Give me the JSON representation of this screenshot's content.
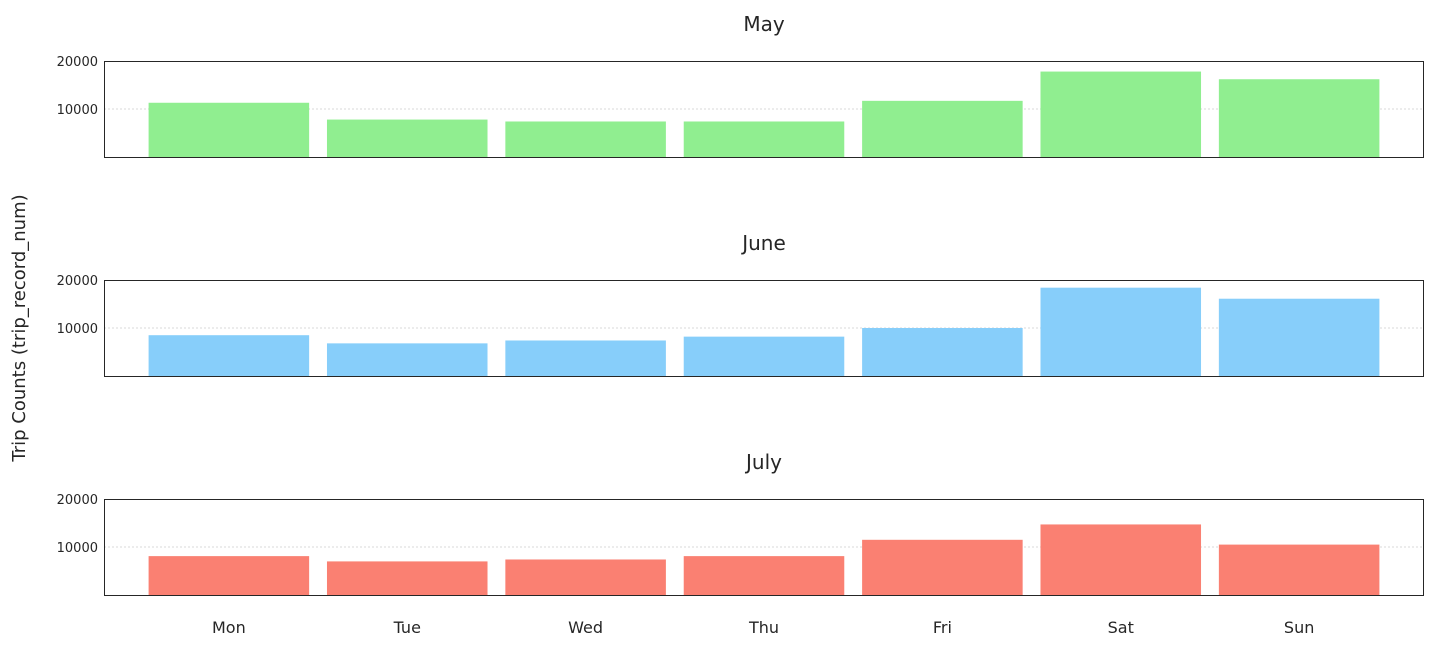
{
  "chart_data": {
    "type": "bar",
    "ylabel": "Trip Counts (trip_record_num)",
    "categories": [
      "Mon",
      "Tue",
      "Wed",
      "Thu",
      "Fri",
      "Sat",
      "Sun"
    ],
    "ylim": [
      0,
      20000
    ],
    "yticks": [
      10000,
      20000
    ],
    "grid": true,
    "panels": [
      {
        "title": "May",
        "color": "#90ee90",
        "values": [
          11300,
          7800,
          7400,
          7400,
          11700,
          17800,
          16200
        ]
      },
      {
        "title": "June",
        "color": "#87cefa",
        "values": [
          8500,
          6800,
          7400,
          8200,
          10000,
          18400,
          16100
        ]
      },
      {
        "title": "July",
        "color": "#fa8072",
        "values": [
          8100,
          7000,
          7400,
          8100,
          11500,
          14700,
          10500
        ]
      }
    ]
  }
}
